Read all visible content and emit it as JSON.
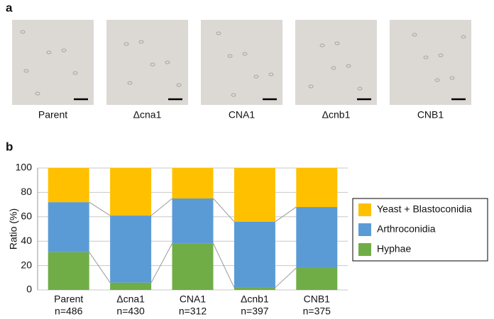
{
  "panel_a": {
    "label": "a",
    "captions": [
      "Parent",
      "Δcna1",
      "CNA1",
      "Δcnb1",
      "CNB1"
    ]
  },
  "chart_data": {
    "type": "stacked_bar",
    "panel_label": "b",
    "y_label": "Ratio (%)",
    "categories": [
      "Parent",
      "Δcna1",
      "CNA1",
      "Δcnb1",
      "CNB1"
    ],
    "sample_labels": [
      "n=486",
      "n=430",
      "n=312",
      "n=397",
      "n=375"
    ],
    "series": [
      {
        "name": "Hyphae",
        "color": "#70ad47",
        "values": [
          31,
          6,
          38,
          2,
          18
        ]
      },
      {
        "name": "Arthroconidia",
        "color": "#5b9bd5",
        "values": [
          41,
          55,
          37,
          54,
          50
        ]
      },
      {
        "name": "Yeast + Blastoconidia",
        "color": "#ffc000",
        "values": [
          28,
          39,
          25,
          44,
          32
        ]
      }
    ],
    "ylim": [
      0,
      100
    ],
    "yticks": [
      0,
      20,
      40,
      60,
      80,
      100
    ],
    "grid": true,
    "legend": "right"
  }
}
